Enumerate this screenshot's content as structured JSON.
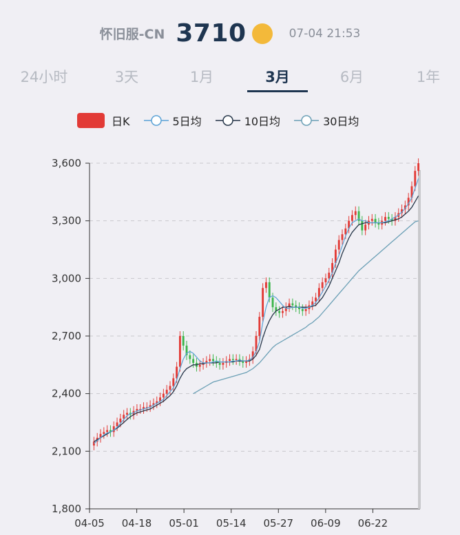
{
  "header": {
    "server": "怀旧服-CN",
    "price": "3710",
    "timestamp": "07-04 21:53",
    "coin_color": "#f3b93a"
  },
  "tabs": [
    {
      "label": "24小时",
      "active": false
    },
    {
      "label": "3天",
      "active": false
    },
    {
      "label": "1月",
      "active": false
    },
    {
      "label": "3月",
      "active": true
    },
    {
      "label": "6月",
      "active": false
    },
    {
      "label": "1年",
      "active": false
    }
  ],
  "legend": [
    {
      "label": "日K",
      "kind": "candle",
      "color": "#e23a36"
    },
    {
      "label": "5日均",
      "kind": "line",
      "color": "#5aa2d6"
    },
    {
      "label": "10日均",
      "kind": "line",
      "color": "#253548"
    },
    {
      "label": "30日均",
      "kind": "line",
      "color": "#6a9fb5"
    }
  ],
  "chart_data": {
    "type": "candlestick",
    "ylim": [
      1800,
      3600
    ],
    "yticks": [
      "1,800",
      "2,100",
      "2,400",
      "2,700",
      "3,000",
      "3,300",
      "3,600"
    ],
    "ytick_values": [
      1800,
      2100,
      2400,
      2700,
      3000,
      3300,
      3600
    ],
    "xticks": [
      "04-05",
      "04-18",
      "05-01",
      "05-14",
      "05-27",
      "06-09",
      "06-22"
    ],
    "grid": true,
    "up_color": "#e23a36",
    "down_color": "#3bb54a",
    "close": [
      2150,
      2170,
      2190,
      2200,
      2210,
      2200,
      2230,
      2250,
      2270,
      2290,
      2300,
      2290,
      2310,
      2320,
      2320,
      2330,
      2330,
      2340,
      2350,
      2360,
      2380,
      2400,
      2420,
      2440,
      2480,
      2540,
      2700,
      2650,
      2600,
      2580,
      2560,
      2540,
      2550,
      2560,
      2570,
      2580,
      2570,
      2560,
      2550,
      2560,
      2570,
      2580,
      2575,
      2580,
      2570,
      2560,
      2570,
      2580,
      2620,
      2700,
      2800,
      2950,
      2980,
      2900,
      2850,
      2830,
      2820,
      2830,
      2850,
      2870,
      2860,
      2850,
      2840,
      2830,
      2840,
      2860,
      2880,
      2900,
      2950,
      2980,
      3000,
      3030,
      3080,
      3150,
      3200,
      3230,
      3260,
      3300,
      3330,
      3350,
      3300,
      3250,
      3280,
      3300,
      3310,
      3290,
      3280,
      3300,
      3320,
      3310,
      3300,
      3320,
      3340,
      3360,
      3380,
      3420,
      3480,
      3560,
      3600
    ],
    "ma5": [
      2140,
      2155,
      2170,
      2185,
      2195,
      2200,
      2210,
      2225,
      2245,
      2265,
      2285,
      2295,
      2300,
      2310,
      2315,
      2320,
      2325,
      2330,
      2340,
      2350,
      2360,
      2370,
      2390,
      2410,
      2430,
      2470,
      2530,
      2580,
      2610,
      2620,
      2610,
      2590,
      2570,
      2560,
      2560,
      2560,
      2565,
      2570,
      2565,
      2565,
      2565,
      2565,
      2570,
      2570,
      2575,
      2570,
      2570,
      2575,
      2590,
      2620,
      2670,
      2770,
      2850,
      2900,
      2910,
      2900,
      2880,
      2860,
      2845,
      2845,
      2850,
      2850,
      2850,
      2845,
      2845,
      2850,
      2860,
      2875,
      2900,
      2930,
      2960,
      2990,
      3030,
      3080,
      3120,
      3170,
      3220,
      3260,
      3290,
      3300,
      3310,
      3300,
      3300,
      3290,
      3290,
      3290,
      3290,
      3290,
      3295,
      3300,
      3310,
      3320,
      3330,
      3345,
      3365,
      3390,
      3420,
      3470,
      3520
    ],
    "ma10": [
      2150,
      2160,
      2170,
      2180,
      2190,
      2200,
      2210,
      2220,
      2235,
      2250,
      2265,
      2280,
      2290,
      2300,
      2305,
      2310,
      2315,
      2320,
      2330,
      2340,
      2350,
      2360,
      2375,
      2390,
      2410,
      2440,
      2480,
      2510,
      2530,
      2540,
      2550,
      2550,
      2555,
      2555,
      2560,
      2560,
      2560,
      2560,
      2565,
      2565,
      2565,
      2565,
      2565,
      2570,
      2570,
      2570,
      2570,
      2570,
      2580,
      2600,
      2630,
      2690,
      2740,
      2780,
      2810,
      2830,
      2840,
      2850,
      2850,
      2855,
      2850,
      2850,
      2850,
      2850,
      2850,
      2850,
      2855,
      2860,
      2880,
      2900,
      2930,
      2960,
      3000,
      3040,
      3080,
      3130,
      3170,
      3210,
      3240,
      3260,
      3280,
      3285,
      3290,
      3290,
      3290,
      3290,
      3290,
      3290,
      3290,
      3295,
      3300,
      3305,
      3310,
      3320,
      3335,
      3350,
      3370,
      3400,
      3430
    ],
    "ma30": [
      null,
      null,
      null,
      null,
      null,
      null,
      null,
      null,
      null,
      null,
      null,
      null,
      null,
      null,
      null,
      null,
      null,
      null,
      null,
      null,
      null,
      null,
      null,
      null,
      null,
      null,
      null,
      null,
      null,
      null,
      2400,
      2410,
      2420,
      2430,
      2440,
      2450,
      2460,
      2465,
      2470,
      2475,
      2480,
      2485,
      2490,
      2495,
      2500,
      2505,
      2510,
      2520,
      2530,
      2545,
      2560,
      2580,
      2600,
      2620,
      2640,
      2655,
      2665,
      2675,
      2685,
      2695,
      2705,
      2715,
      2725,
      2735,
      2745,
      2760,
      2770,
      2785,
      2800,
      2820,
      2840,
      2860,
      2880,
      2900,
      2920,
      2940,
      2960,
      2980,
      3000,
      3020,
      3040,
      3055,
      3070,
      3085,
      3100,
      3115,
      3130,
      3145,
      3160,
      3175,
      3190,
      3205,
      3220,
      3235,
      3250,
      3265,
      3280,
      3295,
      3300
    ]
  }
}
